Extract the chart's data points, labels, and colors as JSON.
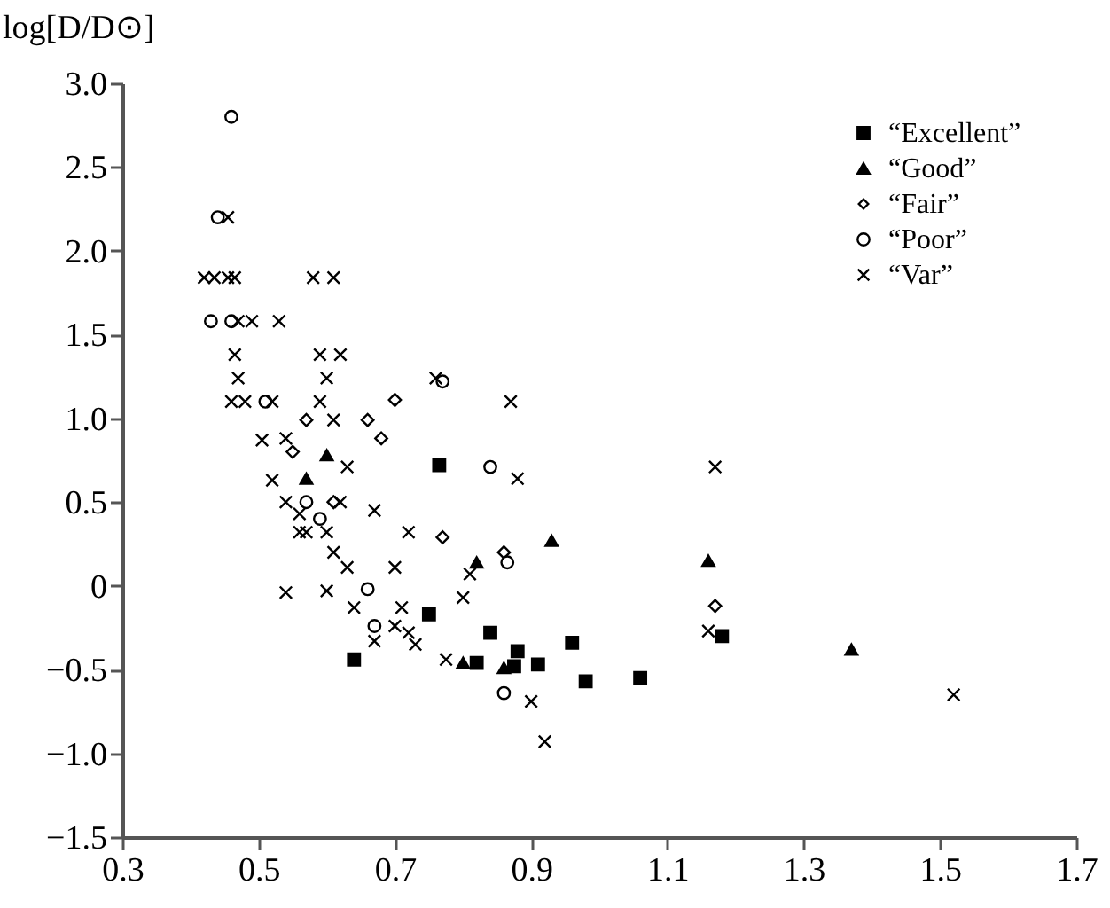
{
  "chart_data": {
    "type": "scatter",
    "ylabel": "log[D/D⊙]",
    "xlim": [
      0.3,
      1.7
    ],
    "xticks": [
      0.3,
      0.5,
      0.7,
      0.9,
      1.1,
      1.3,
      1.5,
      1.7
    ],
    "ylim": [
      -1.5,
      3.0
    ],
    "yticks": [
      {
        "value": 3.0,
        "label": "3.0"
      },
      {
        "value": 2.5,
        "label": "2.5"
      },
      {
        "value": 2.0,
        "label": "2.0"
      },
      {
        "value": 1.5,
        "label": "1.5"
      },
      {
        "value": 1.0,
        "label": "1.0"
      },
      {
        "value": 0.5,
        "label": "0.5"
      },
      0,
      {
        "value": -0.5,
        "label": "−0.5"
      },
      {
        "value": -1.0,
        "label": "−1.0"
      },
      {
        "value": -1.5,
        "label": "−1.5"
      }
    ],
    "grid": false,
    "legend": "top right",
    "series": [
      {
        "name": "“Excellent”",
        "color": "#000000",
        "marker": "square",
        "x": [
          0.765,
          0.64,
          0.75,
          0.84,
          0.82,
          0.88,
          0.875,
          0.91,
          0.96,
          0.98,
          1.06,
          1.18
        ],
        "values": [
          0.72,
          -0.44,
          -0.17,
          -0.28,
          -0.46,
          -0.39,
          -0.48,
          -0.47,
          -0.34,
          -0.57,
          -0.55,
          -0.3
        ]
      },
      {
        "name": "“Good”",
        "color": "#000000",
        "marker": "triangle",
        "x": [
          0.57,
          0.6,
          0.8,
          0.82,
          0.86,
          0.93,
          1.16,
          1.37
        ],
        "values": [
          0.64,
          0.78,
          -0.46,
          0.14,
          -0.49,
          0.27,
          0.15,
          -0.38
        ]
      },
      {
        "name": "“Fair”",
        "color": "#000000",
        "marker": "diamond",
        "x": [
          0.7,
          0.66,
          0.68,
          0.57,
          0.55,
          0.77,
          0.86,
          1.17,
          0.61
        ],
        "values": [
          1.11,
          0.99,
          0.88,
          0.99,
          0.8,
          0.29,
          0.2,
          -0.12,
          0.5
        ]
      },
      {
        "name": "“Poor”",
        "color": "#000000",
        "marker": "circle",
        "x": [
          0.46,
          0.44,
          0.43,
          0.51,
          0.77,
          0.84,
          0.59,
          0.57,
          0.66,
          0.67,
          0.86,
          0.865,
          0.46
        ],
        "values": [
          2.8,
          2.2,
          1.58,
          1.1,
          1.22,
          0.71,
          0.4,
          0.5,
          -0.02,
          -0.24,
          -0.64,
          0.14,
          1.58
        ]
      },
      {
        "name": "“Var”",
        "color": "#000000",
        "marker": "cross",
        "x": [
          0.455,
          0.42,
          0.435,
          0.455,
          0.465,
          0.58,
          0.61,
          0.47,
          0.49,
          0.53,
          0.465,
          0.59,
          0.62,
          0.47,
          0.6,
          0.76,
          0.46,
          0.48,
          0.52,
          0.59,
          0.87,
          0.61,
          0.505,
          0.54,
          0.52,
          0.63,
          0.54,
          0.56,
          0.56,
          0.57,
          0.6,
          0.62,
          0.67,
          0.61,
          0.63,
          0.7,
          0.72,
          0.54,
          0.6,
          0.64,
          0.67,
          0.7,
          0.71,
          0.72,
          0.73,
          0.775,
          0.8,
          0.81,
          0.88,
          0.9,
          0.92,
          1.17,
          1.16,
          1.52
        ],
        "values": [
          2.2,
          1.84,
          1.84,
          1.84,
          1.84,
          1.84,
          1.84,
          1.58,
          1.58,
          1.58,
          1.38,
          1.38,
          1.38,
          1.24,
          1.24,
          1.24,
          1.1,
          1.1,
          1.1,
          1.1,
          1.1,
          0.99,
          0.87,
          0.88,
          0.63,
          0.71,
          0.5,
          0.43,
          0.32,
          0.32,
          0.32,
          0.5,
          0.45,
          0.2,
          0.11,
          0.11,
          0.32,
          -0.04,
          -0.03,
          -0.13,
          -0.33,
          -0.24,
          -0.13,
          -0.28,
          -0.35,
          -0.44,
          -0.07,
          0.07,
          0.64,
          -0.69,
          -0.93,
          0.71,
          -0.27,
          -0.65
        ]
      }
    ]
  }
}
